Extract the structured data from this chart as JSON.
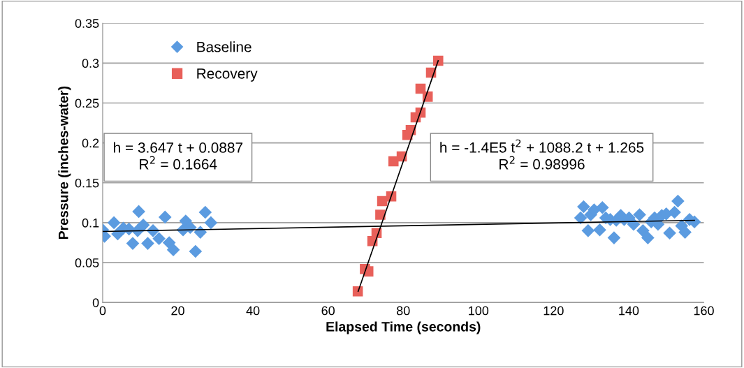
{
  "chart_data": {
    "type": "scatter",
    "xlabel": "Elapsed Time (seconds)",
    "ylabel": "Pressure (inches-water)",
    "xlim": [
      0,
      160
    ],
    "xticks": [
      0,
      20,
      40,
      60,
      80,
      100,
      120,
      140,
      160
    ],
    "ylim": [
      0,
      0.35
    ],
    "yticks": [
      0,
      0.05,
      0.1,
      0.15,
      0.2,
      0.25,
      0.3,
      0.35
    ],
    "grid": "y",
    "legend": "top left",
    "annotations": [
      "h = 3.647 t + 0.0887\nR$^{2}$ = 0.1664",
      "h = -1.4E5 t$^{2}$ + 1088.2 t + 1.265\nR$^{2}$ = 0.98996"
    ],
    "series": [
      {
        "name": "Baseline",
        "color": "#5b9be0",
        "marker": "diamond",
        "x": [
          0,
          0.5,
          3,
          4,
          5.5,
          7,
          8,
          9.3,
          9.6,
          10.8,
          12,
          13.4,
          15,
          16.6,
          17.7,
          18.8,
          21.4,
          22.1,
          23.3,
          24.7,
          26,
          27.3,
          28.8,
          127.2,
          128,
          129.2,
          129.9,
          130.8,
          132.3,
          133,
          133.9,
          135.1,
          136.1,
          136.7,
          137.9,
          138.8,
          140.1,
          141.3,
          142.9,
          143.8,
          145.1,
          146,
          146.9,
          147.8,
          148.8,
          150,
          150.9,
          152.2,
          153.1,
          154.1,
          155,
          156.2,
          157.5
        ],
        "values": [
          0.091,
          0.083,
          0.1,
          0.086,
          0.093,
          0.092,
          0.074,
          0.09,
          0.114,
          0.097,
          0.074,
          0.09,
          0.08,
          0.107,
          0.075,
          0.066,
          0.091,
          0.102,
          0.094,
          0.064,
          0.088,
          0.113,
          0.1,
          0.106,
          0.12,
          0.09,
          0.11,
          0.116,
          0.091,
          0.119,
          0.106,
          0.104,
          0.081,
          0.103,
          0.109,
          0.104,
          0.106,
          0.098,
          0.11,
          0.09,
          0.081,
          0.101,
          0.106,
          0.098,
          0.109,
          0.111,
          0.087,
          0.113,
          0.127,
          0.096,
          0.088,
          0.104,
          0.101
        ]
      },
      {
        "name": "Recovery",
        "color": "#e8605a",
        "marker": "square",
        "x": [
          67.9,
          69.8,
          70.7,
          71.8,
          72.9,
          73.9,
          74.4,
          76.8,
          77.4,
          79.6,
          81.1,
          82,
          83.3,
          84.6,
          84.6,
          86.5,
          87.4,
          89.3
        ],
        "values": [
          0.014,
          0.042,
          0.039,
          0.077,
          0.087,
          0.11,
          0.127,
          0.133,
          0.177,
          0.183,
          0.21,
          0.216,
          0.232,
          0.238,
          0.268,
          0.258,
          0.288,
          0.303
        ]
      },
      {
        "type": "line",
        "color": "#000000",
        "marker": "none",
        "x": [
          0,
          157.5
        ],
        "values": [
          0.089,
          0.103
        ]
      },
      {
        "type": "line",
        "color": "#000000",
        "marker": "none",
        "x": [
          68,
          89.3
        ],
        "values": [
          0.014,
          0.303
        ]
      }
    ]
  }
}
